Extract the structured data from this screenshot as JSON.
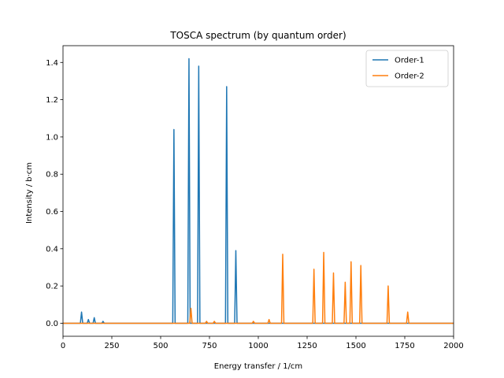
{
  "chart_data": {
    "type": "line",
    "title": "TOSCA spectrum (by quantum order)",
    "xlabel": "Energy transfer / 1/cm",
    "ylabel": "Intensity / b·cm",
    "xlim": [
      0,
      2000
    ],
    "ylim": [
      -0.07,
      1.49
    ],
    "xticks": [
      0,
      250,
      500,
      750,
      1000,
      1250,
      1500,
      1750,
      2000
    ],
    "xtick_labels": [
      "0",
      "250",
      "500",
      "750",
      "1000",
      "1250",
      "1500",
      "1750",
      "2000"
    ],
    "yticks": [
      0.0,
      0.2,
      0.4,
      0.6,
      0.8,
      1.0,
      1.2,
      1.4
    ],
    "ytick_labels": [
      "0.0",
      "0.2",
      "0.4",
      "0.6",
      "0.8",
      "1.0",
      "1.2",
      "1.4"
    ],
    "grid": false,
    "legend_position": "top-right",
    "series": [
      {
        "name": "Order-1",
        "color": "#1f77b4",
        "peaks": [
          {
            "x": 95,
            "y": 0.06
          },
          {
            "x": 130,
            "y": 0.02
          },
          {
            "x": 160,
            "y": 0.03
          },
          {
            "x": 205,
            "y": 0.01
          },
          {
            "x": 568,
            "y": 1.04
          },
          {
            "x": 645,
            "y": 1.42
          },
          {
            "x": 695,
            "y": 1.38
          },
          {
            "x": 838,
            "y": 1.27
          },
          {
            "x": 885,
            "y": 0.39
          }
        ]
      },
      {
        "name": "Order-2",
        "color": "#ff7f0e",
        "peaks": [
          {
            "x": 655,
            "y": 0.08
          },
          {
            "x": 735,
            "y": 0.01
          },
          {
            "x": 775,
            "y": 0.01
          },
          {
            "x": 975,
            "y": 0.01
          },
          {
            "x": 1055,
            "y": 0.02
          },
          {
            "x": 1125,
            "y": 0.37
          },
          {
            "x": 1285,
            "y": 0.29
          },
          {
            "x": 1335,
            "y": 0.38
          },
          {
            "x": 1385,
            "y": 0.27
          },
          {
            "x": 1445,
            "y": 0.22
          },
          {
            "x": 1475,
            "y": 0.33
          },
          {
            "x": 1525,
            "y": 0.31
          },
          {
            "x": 1665,
            "y": 0.2
          },
          {
            "x": 1765,
            "y": 0.06
          }
        ]
      }
    ]
  }
}
